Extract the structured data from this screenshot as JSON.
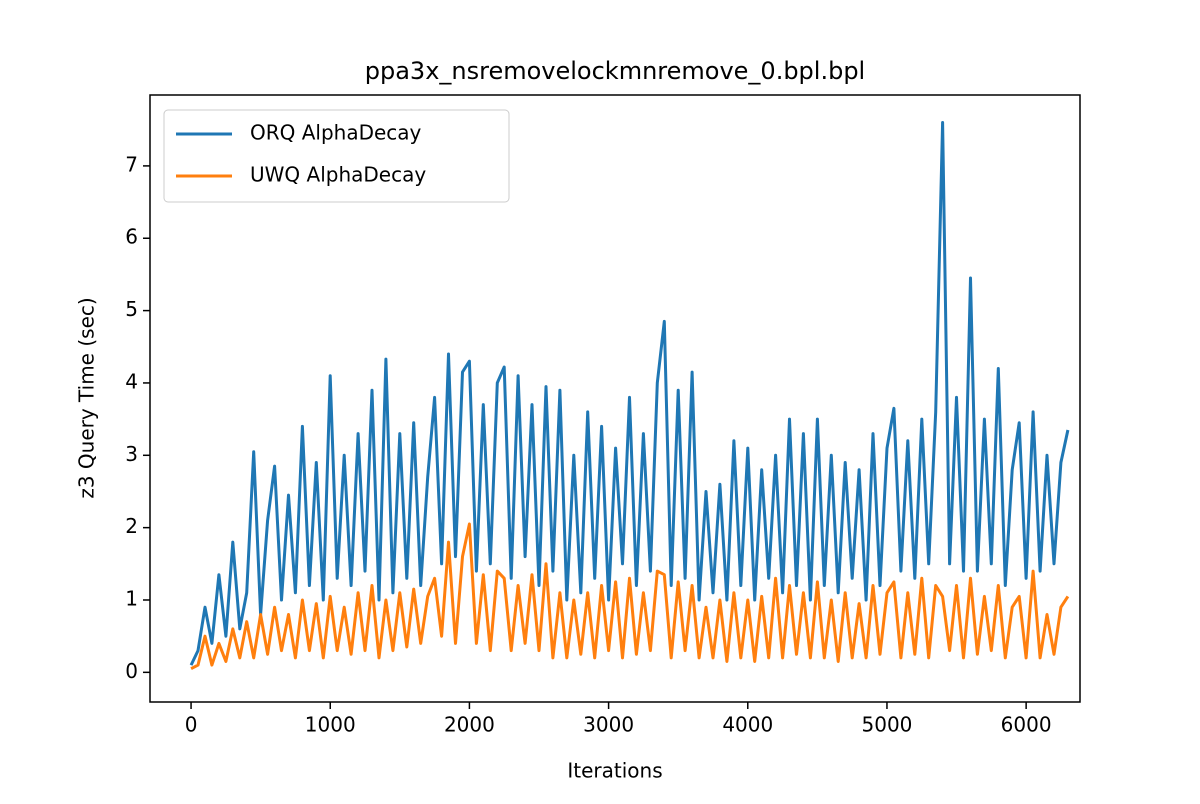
{
  "chart_data": {
    "type": "line",
    "title": "ppa3x_nsremovelockmnremove_0.bpl.bpl",
    "x_label": "Iterations",
    "y_label": "z3 Query Time (sec)",
    "x": [
      0,
      50,
      100,
      150,
      200,
      250,
      300,
      350,
      400,
      450,
      500,
      550,
      600,
      650,
      700,
      750,
      800,
      850,
      900,
      950,
      1000,
      1050,
      1100,
      1150,
      1200,
      1250,
      1300,
      1350,
      1400,
      1450,
      1500,
      1550,
      1600,
      1650,
      1700,
      1750,
      1800,
      1850,
      1900,
      1950,
      2000,
      2050,
      2100,
      2150,
      2200,
      2250,
      2300,
      2350,
      2400,
      2450,
      2500,
      2550,
      2600,
      2650,
      2700,
      2750,
      2800,
      2850,
      2900,
      2950,
      3000,
      3050,
      3100,
      3150,
      3200,
      3250,
      3300,
      3350,
      3400,
      3450,
      3500,
      3550,
      3600,
      3650,
      3700,
      3750,
      3800,
      3850,
      3900,
      3950,
      4000,
      4050,
      4100,
      4150,
      4200,
      4250,
      4300,
      4350,
      4400,
      4450,
      4500,
      4550,
      4600,
      4650,
      4700,
      4750,
      4800,
      4850,
      4900,
      4950,
      5000,
      5050,
      5100,
      5150,
      5200,
      5250,
      5300,
      5350,
      5400,
      5450,
      5500,
      5550,
      5600,
      5650,
      5700,
      5750,
      5800,
      5850,
      5900,
      5950,
      6000,
      6050,
      6100,
      6150,
      6200,
      6250,
      6300
    ],
    "series": [
      {
        "name": "ORQ AlphaDecay",
        "color": "#1f77b4",
        "values": [
          0.1,
          0.3,
          0.9,
          0.4,
          1.35,
          0.5,
          1.8,
          0.6,
          1.1,
          3.05,
          0.8,
          2.1,
          2.85,
          1.0,
          2.45,
          1.1,
          3.4,
          1.2,
          2.9,
          1.0,
          4.1,
          1.3,
          3.0,
          1.2,
          3.3,
          1.4,
          3.9,
          1.0,
          4.33,
          1.1,
          3.3,
          1.3,
          3.45,
          1.2,
          2.7,
          3.8,
          1.5,
          4.4,
          1.6,
          4.15,
          4.3,
          1.4,
          3.7,
          1.5,
          4.0,
          4.22,
          1.3,
          4.1,
          1.6,
          3.7,
          1.2,
          3.95,
          1.4,
          3.9,
          1.0,
          3.0,
          1.1,
          3.6,
          1.3,
          3.4,
          1.0,
          3.1,
          1.5,
          3.8,
          1.2,
          3.3,
          1.4,
          4.0,
          4.85,
          1.2,
          3.9,
          1.3,
          4.15,
          1.0,
          2.5,
          1.1,
          2.6,
          1.0,
          3.2,
          1.2,
          3.1,
          1.0,
          2.8,
          1.3,
          3.0,
          1.1,
          3.5,
          1.2,
          3.3,
          1.0,
          3.5,
          1.2,
          3.0,
          1.1,
          2.9,
          1.3,
          2.8,
          1.0,
          3.3,
          1.2,
          3.1,
          3.65,
          1.4,
          3.2,
          1.3,
          3.5,
          1.5,
          3.6,
          7.6,
          1.5,
          3.8,
          1.4,
          5.45,
          1.4,
          3.5,
          1.5,
          4.2,
          1.2,
          2.8,
          3.45,
          1.3,
          3.6,
          1.4,
          3.0,
          1.5,
          2.9,
          3.35
        ]
      },
      {
        "name": "UWQ AlphaDecay",
        "color": "#ff7f0e",
        "values": [
          0.05,
          0.1,
          0.5,
          0.1,
          0.4,
          0.15,
          0.6,
          0.2,
          0.7,
          0.2,
          0.8,
          0.25,
          0.9,
          0.3,
          0.8,
          0.2,
          1.0,
          0.3,
          0.95,
          0.2,
          1.05,
          0.3,
          0.9,
          0.25,
          1.1,
          0.3,
          1.2,
          0.2,
          1.0,
          0.3,
          1.1,
          0.35,
          1.15,
          0.4,
          1.05,
          1.3,
          0.5,
          1.8,
          0.4,
          1.6,
          2.05,
          0.4,
          1.35,
          0.3,
          1.4,
          1.3,
          0.3,
          1.2,
          0.4,
          1.35,
          0.3,
          1.5,
          0.2,
          1.1,
          0.2,
          1.0,
          0.25,
          1.1,
          0.2,
          1.2,
          0.3,
          1.25,
          0.2,
          1.3,
          0.25,
          1.1,
          0.3,
          1.4,
          1.35,
          0.2,
          1.25,
          0.3,
          1.2,
          0.2,
          0.9,
          0.2,
          1.0,
          0.15,
          1.1,
          0.2,
          1.0,
          0.15,
          1.05,
          0.2,
          1.3,
          0.2,
          1.2,
          0.25,
          1.1,
          0.2,
          1.25,
          0.2,
          1.0,
          0.15,
          1.1,
          0.2,
          0.95,
          0.2,
          1.2,
          0.25,
          1.1,
          1.25,
          0.2,
          1.1,
          0.25,
          1.3,
          0.2,
          1.2,
          1.05,
          0.3,
          1.2,
          0.2,
          1.3,
          0.25,
          1.05,
          0.3,
          1.2,
          0.2,
          0.9,
          1.05,
          0.2,
          1.4,
          0.2,
          0.8,
          0.25,
          0.9,
          1.05
        ]
      }
    ],
    "xlim": [
      -295,
      6387
    ],
    "ylim": [
      -0.41,
      7.98
    ],
    "xticks": [
      0,
      1000,
      2000,
      3000,
      4000,
      5000,
      6000
    ],
    "yticks": [
      0,
      1,
      2,
      3,
      4,
      5,
      6,
      7
    ],
    "legend": "upper left"
  }
}
